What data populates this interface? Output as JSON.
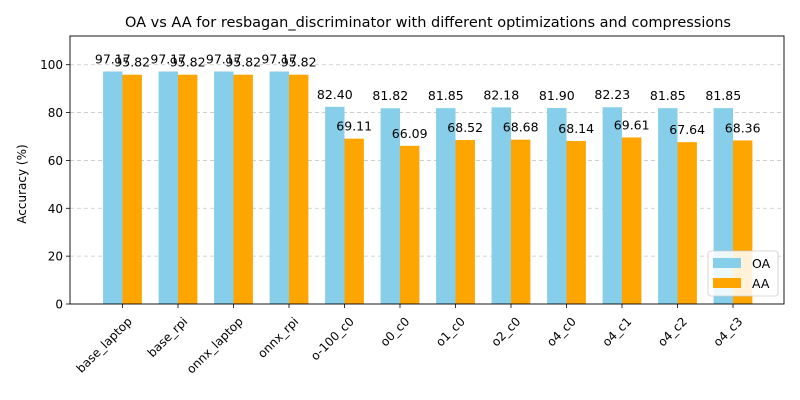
{
  "chart_data": {
    "type": "bar",
    "title": "OA vs AA for resbagan_discriminator with different optimizations and compressions",
    "xlabel": "",
    "ylabel": "Accuracy (%)",
    "ylim": [
      0,
      112
    ],
    "yticks": [
      0,
      20,
      40,
      60,
      80,
      100
    ],
    "grid": "y-dashed",
    "legend_position": "bottom-right",
    "categories": [
      "base_laptop",
      "base_rpi",
      "onnx_laptop",
      "onnx_rpi",
      "o-100_c0",
      "o0_c0",
      "o1_c0",
      "o2_c0",
      "o4_c0",
      "o4_c1",
      "o4_c2",
      "o4_c3"
    ],
    "series": [
      {
        "name": "OA",
        "color": "#87ceeb",
        "values": [
          97.17,
          97.17,
          97.17,
          97.17,
          82.4,
          81.82,
          81.85,
          82.18,
          81.9,
          82.23,
          81.85,
          81.85
        ],
        "labels": [
          "97.17",
          "97.17",
          "97.17",
          "97.17",
          "82.40",
          "81.82",
          "81.85",
          "82.18",
          "81.90",
          "82.23",
          "81.85",
          "81.85"
        ]
      },
      {
        "name": "AA",
        "color": "#ffa500",
        "values": [
          95.82,
          95.82,
          95.82,
          95.82,
          69.11,
          66.09,
          68.52,
          68.68,
          68.14,
          69.61,
          67.64,
          68.36
        ],
        "labels": [
          "95.82",
          "95.82",
          "95.82",
          "95.82",
          "69.11",
          "66.09",
          "68.52",
          "68.68",
          "68.14",
          "69.61",
          "67.64",
          "68.36"
        ]
      }
    ]
  }
}
